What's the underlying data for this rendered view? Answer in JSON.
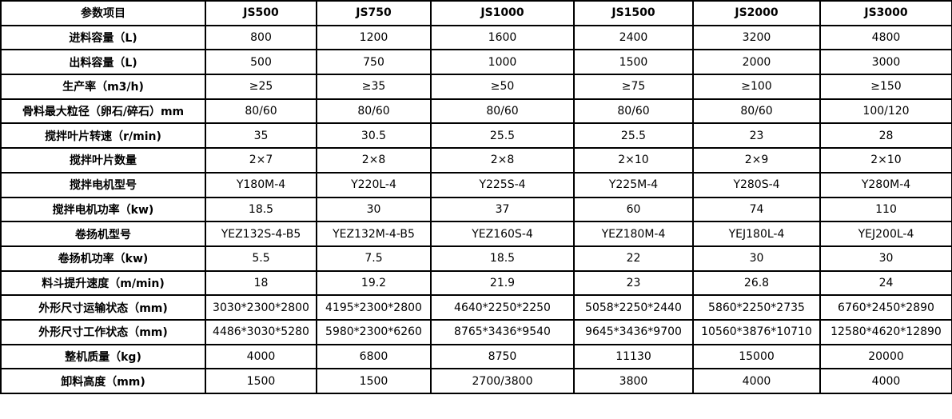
{
  "table": {
    "headers": [
      "参数项目",
      "JS500",
      "JS750",
      "JS1000",
      "JS1500",
      "JS2000",
      "JS3000"
    ],
    "rows": [
      [
        "进料容量（L)",
        "800",
        "1200",
        "1600",
        "2400",
        "3200",
        "4800"
      ],
      [
        "出料容量（L)",
        "500",
        "750",
        "1000",
        "1500",
        "2000",
        "3000"
      ],
      [
        "生产率（m3/h)",
        "≥25",
        "≥35",
        "≥50",
        "≥75",
        "≥100",
        "≥150"
      ],
      [
        "骨料最大粒径（卵石/碎石）mm",
        "80/60",
        "80/60",
        "80/60",
        "80/60",
        "80/60",
        "100/120"
      ],
      [
        "搅拌叶片转速（r/min)",
        "35",
        "30.5",
        "25.5",
        "25.5",
        "23",
        "28"
      ],
      [
        "搅拌叶片数量",
        "2×7",
        "2×8",
        "2×8",
        "2×10",
        "2×9",
        "2×10"
      ],
      [
        "搅拌电机型号",
        "Y180M-4",
        "Y220L-4",
        "Y225S-4",
        "Y225M-4",
        "Y280S-4",
        "Y280M-4"
      ],
      [
        "搅拌电机功率（kw)",
        "18.5",
        "30",
        "37",
        "60",
        "74",
        "110"
      ],
      [
        "卷扬机型号",
        "YEZ132S-4-B5",
        "YEZ132M-4-B5",
        "YEZ160S-4",
        "YEZ180M-4",
        "YEJ180L-4",
        "YEJ200L-4"
      ],
      [
        "卷扬机功率（kw)",
        "5.5",
        "7.5",
        "18.5",
        "22",
        "30",
        "30"
      ],
      [
        "料斗提升速度（m/min)",
        "18",
        "19.2",
        "21.9",
        "23",
        "26.8",
        "24"
      ],
      [
        "外形尺寸运输状态（mm)",
        "3030*2300*2800",
        "4195*2300*2800",
        "4640*2250*2250",
        "5058*2250*2440",
        "5860*2250*2735",
        "6760*2450*2890"
      ],
      [
        "外形尺寸工作状态（mm)",
        "4486*3030*5280",
        "5980*2300*6260",
        "8765*3436*9540",
        "9645*3436*9700",
        "10560*3876*10710",
        "12580*4620*12890"
      ],
      [
        "整机质量（kg)",
        "4000",
        "6800",
        "8750",
        "11130",
        "15000",
        "20000"
      ],
      [
        "卸料高度（mm)",
        "1500",
        "1500",
        "2700/3800",
        "3800",
        "4000",
        "4000"
      ]
    ]
  }
}
